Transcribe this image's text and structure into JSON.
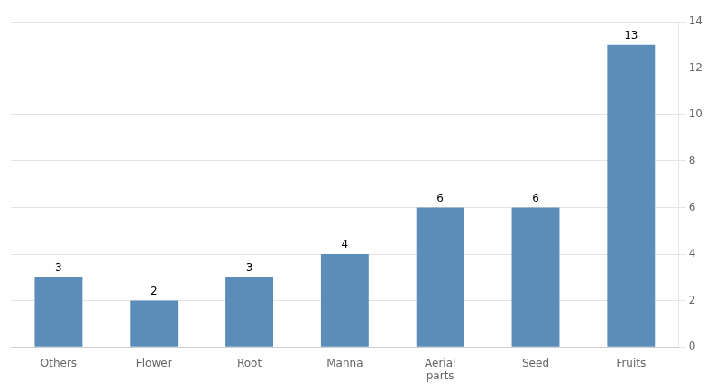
{
  "chart_data": {
    "type": "bar",
    "categories": [
      "Others",
      "Flower",
      "Root",
      "Manna",
      "Aerial\nparts",
      "Seed",
      "Fruits"
    ],
    "values": [
      3,
      2,
      3,
      4,
      6,
      6,
      13
    ],
    "color": "#5B8DB8",
    "ylim": [
      0,
      14
    ],
    "yticks": [
      0,
      2,
      4,
      6,
      8,
      10,
      12,
      14
    ],
    "grid": true,
    "data_labels": true
  }
}
